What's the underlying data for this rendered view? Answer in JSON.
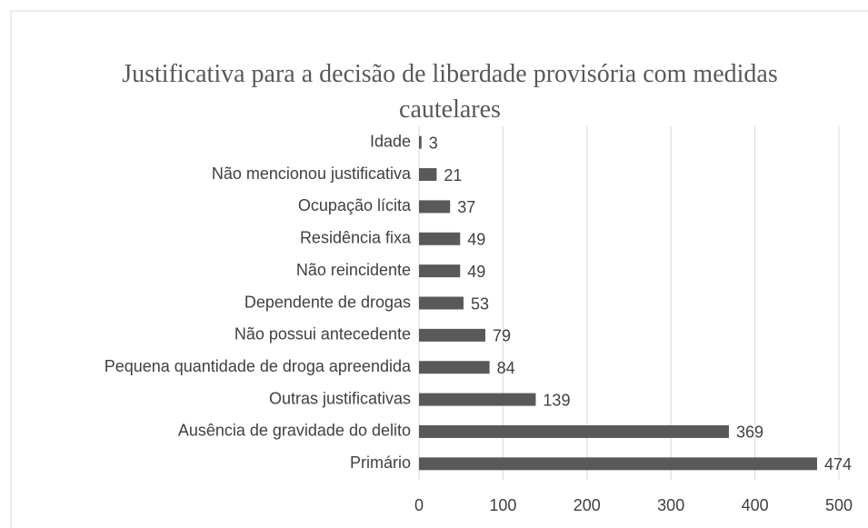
{
  "chart_data": {
    "type": "bar",
    "orientation": "horizontal",
    "title": "Justificativa para a decisão de liberdade provisória com medidas cautelares",
    "categories": [
      "Idade",
      "Não mencionou justificativa",
      "Ocupação lícita",
      "Residência fixa",
      "Não reincidente",
      "Dependente de drogas",
      "Não possui antecedente",
      "Pequena quantidade de droga apreendida",
      "Outras justificativas",
      "Ausência de gravidade do delito",
      "Primário"
    ],
    "values": [
      3,
      21,
      37,
      49,
      49,
      53,
      79,
      84,
      139,
      369,
      474
    ],
    "color": "#595959",
    "xlim": [
      0,
      500
    ],
    "xticks": [
      0,
      100,
      200,
      300,
      400,
      500
    ],
    "grid": true
  }
}
